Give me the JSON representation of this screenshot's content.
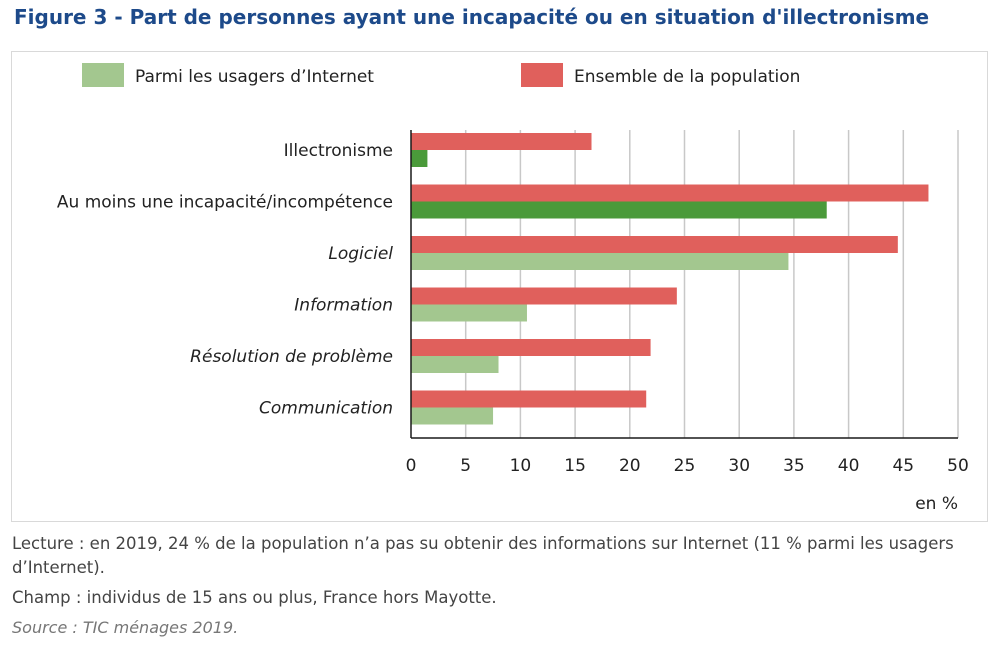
{
  "title": "Figure 3 - Part de personnes ayant une incapacité ou en situation d'illectronisme",
  "colors": {
    "title": "#1d4a8a",
    "green_light": "#a3c78f",
    "green_dark": "#4a9a3a",
    "red": "#e0605c",
    "grid": "#c8c8c8",
    "axis": "#1a1a1a"
  },
  "chart_data": {
    "type": "bar",
    "orientation": "horizontal",
    "categories": [
      "Illectronisme",
      "Au moins une incapacité/incompétence",
      "Logiciel",
      "Information",
      "Résolution de problème",
      "Communication"
    ],
    "category_italic": [
      false,
      false,
      true,
      true,
      true,
      true
    ],
    "series": [
      {
        "name": "Parmi les usagers d’Internet",
        "values": [
          1.5,
          38,
          34.5,
          10.6,
          8,
          7.5
        ]
      },
      {
        "name": "Ensemble de la population",
        "values": [
          16.5,
          47.3,
          44.5,
          24.3,
          21.9,
          21.5
        ]
      }
    ],
    "xlim": [
      0,
      50
    ],
    "xticks": [
      0,
      5,
      10,
      15,
      20,
      25,
      30,
      35,
      40,
      45,
      50
    ],
    "xlabel": "en %",
    "grid": true,
    "legend_position": "top"
  },
  "notes": {
    "lecture": "Lecture : en 2019, 24 % de la population n’a pas su obtenir des informations sur Internet (11 % parmi les usagers d’Internet).",
    "champ": "Champ : individus de 15 ans ou plus, France hors Mayotte.",
    "source": "Source : TIC ménages 2019."
  }
}
